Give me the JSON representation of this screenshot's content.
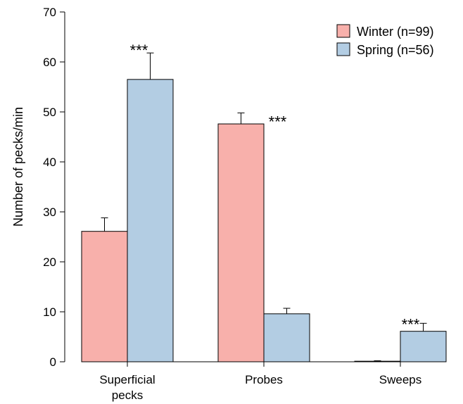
{
  "chart_data": {
    "type": "bar",
    "title": "",
    "xlabel": "",
    "ylabel": "Number of pecks/min",
    "ylim": [
      0,
      70
    ],
    "yticks": [
      0,
      10,
      20,
      30,
      40,
      50,
      60,
      70
    ],
    "categories": [
      [
        "Superficial",
        "pecks"
      ],
      [
        "Probes"
      ],
      [
        "Sweeps"
      ]
    ],
    "series": [
      {
        "name": "Winter (n=99)",
        "color": "#f8b0ab",
        "values": [
          26.1,
          47.6,
          0.1
        ],
        "error": [
          2.7,
          2.2,
          0.1
        ]
      },
      {
        "name": "Spring (n=56)",
        "color": "#b3cde3",
        "values": [
          56.5,
          9.6,
          6.1
        ],
        "error": [
          5.3,
          1.1,
          1.6
        ]
      }
    ],
    "significance": [
      {
        "category": 0,
        "series": 1,
        "label": "***"
      },
      {
        "category": 1,
        "series": 0,
        "label": "***"
      },
      {
        "category": 2,
        "series": 1,
        "label": "***"
      }
    ],
    "legend": "top-right",
    "grid": false
  }
}
